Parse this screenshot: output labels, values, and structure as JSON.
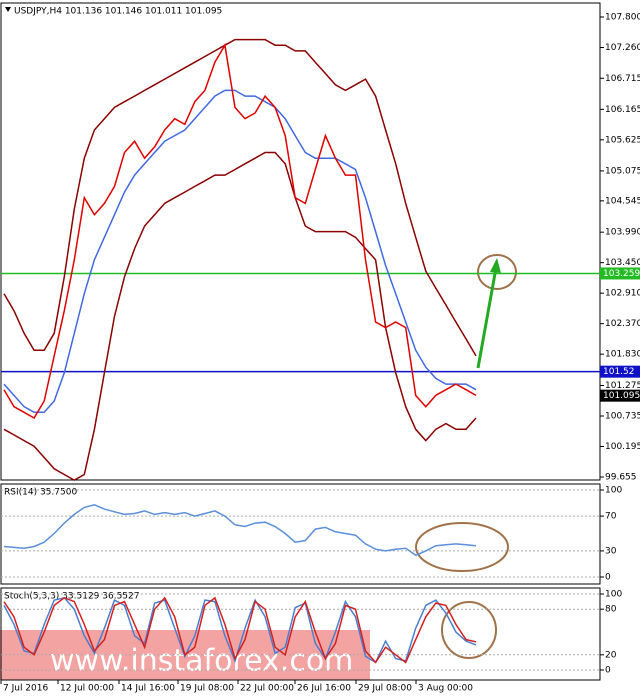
{
  "chart_data": [
    {
      "type": "line",
      "title": "USDJPY,H4 101.136 101.146 101.011 101.095",
      "ylim": [
        99.655,
        107.8
      ],
      "yticks": [
        {
          "value": 107.8,
          "label": "107.800"
        },
        {
          "value": 107.26,
          "label": "107.260"
        },
        106.715,
        106.165,
        105.625,
        105.075,
        104.545,
        {
          "value": 103.99,
          "label": "103.990"
        },
        {
          "value": 103.45,
          "label": "103.450"
        },
        {
          "value": 102.91,
          "label": "102.910"
        },
        {
          "value": 102.37,
          "label": "102.370"
        },
        {
          "value": 101.83,
          "label": "101.830"
        },
        101.275,
        100.735,
        100.195,
        99.655
      ],
      "grid": false,
      "hlines": [
        {
          "value": 103.259,
          "color": "#22bb22"
        },
        {
          "value": 101.52,
          "color": "#1010c8"
        }
      ],
      "last_price": 101.095,
      "series": [
        {
          "color": "#8b0000",
          "values": [
            102.9,
            102.6,
            102.2,
            101.9,
            101.9,
            102.2,
            103.2,
            104.4,
            105.3,
            105.8,
            106.0,
            106.2,
            106.3,
            106.4,
            106.5,
            106.6,
            106.7,
            106.8,
            106.9,
            107.0,
            107.1,
            107.2,
            107.3,
            107.4,
            107.4,
            107.4,
            107.4,
            107.3,
            107.3,
            107.2,
            107.2,
            107.0,
            106.8,
            106.6,
            106.5,
            106.6,
            106.7,
            106.4,
            105.8,
            105.2,
            104.5,
            103.9,
            103.3,
            103.0,
            102.7,
            102.4,
            102.1,
            101.8
          ]
        },
        {
          "color": "#8b0000",
          "values": [
            100.5,
            100.4,
            100.3,
            100.2,
            100.0,
            99.8,
            99.7,
            99.6,
            99.7,
            100.5,
            101.5,
            102.5,
            103.2,
            103.7,
            104.1,
            104.3,
            104.5,
            104.6,
            104.7,
            104.8,
            104.9,
            105.0,
            105.0,
            105.1,
            105.2,
            105.3,
            105.4,
            105.4,
            105.2,
            104.6,
            104.1,
            104.0,
            104.0,
            104.0,
            104.0,
            103.9,
            103.7,
            103.5,
            102.3,
            101.5,
            100.9,
            100.5,
            100.3,
            100.5,
            100.6,
            100.5,
            100.5,
            100.7
          ]
        },
        {
          "color": "#4169e1",
          "values": [
            101.3,
            101.1,
            100.9,
            100.8,
            100.8,
            101.0,
            101.5,
            102.2,
            102.9,
            103.5,
            103.9,
            104.3,
            104.7,
            105.0,
            105.2,
            105.4,
            105.6,
            105.7,
            105.8,
            106.0,
            106.2,
            106.4,
            106.5,
            106.5,
            106.4,
            106.4,
            106.3,
            106.2,
            106.0,
            105.7,
            105.4,
            105.3,
            105.3,
            105.3,
            105.2,
            105.1,
            104.6,
            104.0,
            103.4,
            102.9,
            102.4,
            101.9,
            101.6,
            101.4,
            101.3,
            101.3,
            101.3,
            101.2
          ]
        },
        {
          "color": "#e00000",
          "values": [
            101.2,
            100.9,
            100.8,
            100.7,
            101.0,
            101.8,
            102.6,
            103.5,
            104.6,
            104.3,
            104.5,
            104.8,
            105.4,
            105.6,
            105.3,
            105.5,
            105.8,
            106.0,
            105.9,
            106.3,
            106.5,
            107.0,
            107.3,
            106.2,
            106.0,
            106.1,
            106.4,
            106.2,
            105.7,
            104.6,
            104.5,
            105.1,
            105.7,
            105.3,
            105.0,
            105.0,
            103.5,
            102.4,
            102.3,
            102.4,
            102.3,
            101.1,
            100.9,
            101.1,
            101.2,
            101.3,
            101.2,
            101.1
          ]
        }
      ],
      "xtick_labels": [
        "7 Jul 2016",
        "12 Jul 00:00",
        "14 Jul 16:00",
        "19 Jul 08:00",
        "22 Jul 00:00",
        "26 Jul 16:00",
        "29 Jul 08:00",
        "3 Aug 00:00"
      ]
    },
    {
      "type": "line",
      "title": "RSI(14) 35.7500",
      "ylim": [
        0,
        100
      ],
      "yticks": [
        100,
        70,
        30,
        0
      ],
      "grid": true,
      "series": [
        {
          "color": "#5b8fd9",
          "values": [
            35,
            34,
            33,
            35,
            40,
            50,
            62,
            72,
            80,
            83,
            78,
            75,
            72,
            73,
            76,
            72,
            74,
            72,
            74,
            70,
            73,
            76,
            70,
            60,
            58,
            62,
            63,
            58,
            50,
            40,
            42,
            55,
            57,
            52,
            50,
            48,
            38,
            32,
            30,
            32,
            33,
            25,
            30,
            36,
            37,
            38,
            37,
            36
          ]
        }
      ]
    },
    {
      "type": "line",
      "title": "Stoch(5,3,3) 33.5129 36.5527",
      "ylim": [
        0,
        100
      ],
      "yticks": [
        100,
        80,
        20,
        0
      ],
      "grid": true,
      "series": [
        {
          "color": "#4a7fd0",
          "values": [
            85,
            60,
            25,
            22,
            60,
            92,
            95,
            80,
            45,
            22,
            55,
            92,
            85,
            45,
            35,
            88,
            92,
            55,
            18,
            45,
            92,
            90,
            45,
            12,
            55,
            92,
            70,
            22,
            30,
            82,
            88,
            35,
            15,
            50,
            90,
            70,
            18,
            10,
            38,
            15,
            12,
            55,
            85,
            92,
            75,
            50,
            38,
            33
          ]
        },
        {
          "color": "#d42020",
          "values": [
            90,
            70,
            30,
            20,
            50,
            85,
            95,
            90,
            60,
            25,
            40,
            85,
            90,
            60,
            30,
            80,
            95,
            70,
            20,
            30,
            85,
            95,
            60,
            15,
            40,
            90,
            80,
            30,
            20,
            70,
            90,
            50,
            15,
            35,
            85,
            80,
            25,
            10,
            30,
            20,
            10,
            40,
            70,
            88,
            85,
            60,
            40,
            37
          ]
        }
      ]
    }
  ],
  "watermark": "www.instaforex.com"
}
